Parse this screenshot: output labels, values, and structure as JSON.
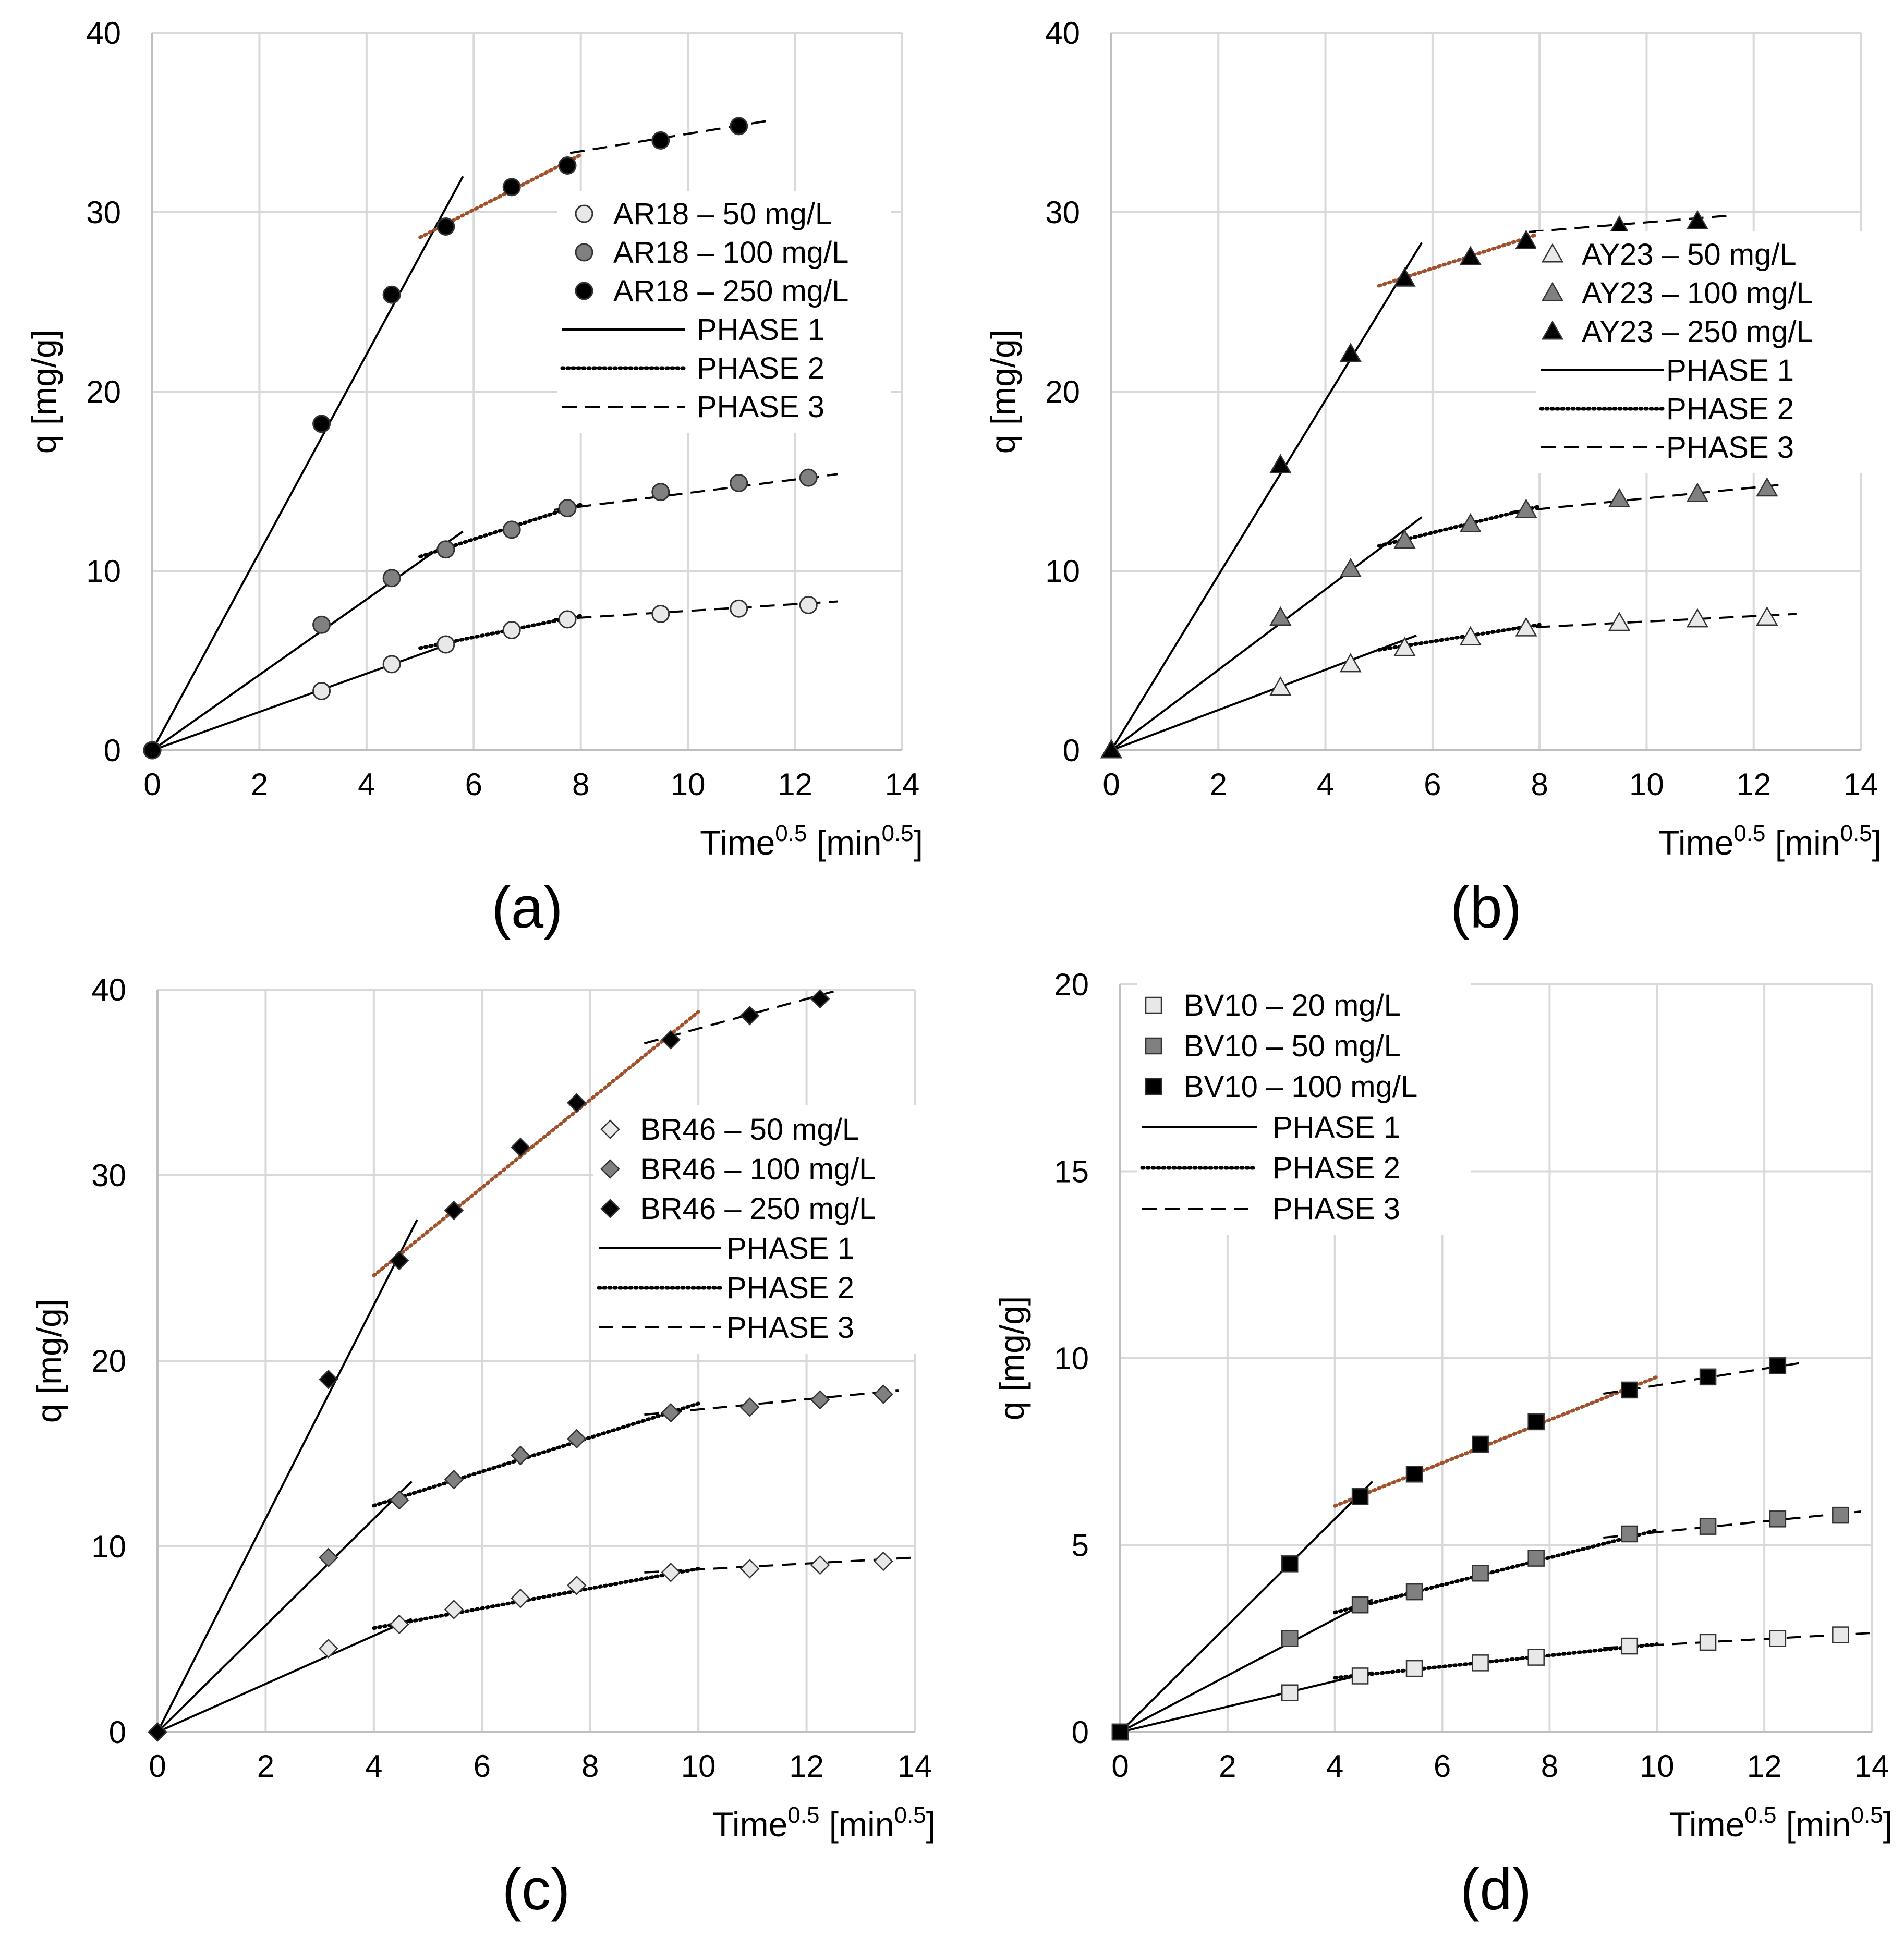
{
  "figure": {
    "panels": [
      {
        "id": "a",
        "panel_label": "(a)",
        "xlabel": "Time",
        "xlabel_sup": "0.5",
        "xunit": "[min",
        "xunit_sup": "0.5",
        "xunit_close": "]",
        "ylabel": "q [mg/g]",
        "legend_entries": [
          "AR18 – 50 mg/L",
          "AR18 – 100 mg/L",
          "AR18 – 250 mg/L",
          "PHASE 1",
          "PHASE 2",
          "PHASE 3"
        ]
      },
      {
        "id": "b",
        "panel_label": "(b)",
        "xlabel": "Time",
        "xlabel_sup": "0.5",
        "xunit": "[min",
        "xunit_sup": "0.5",
        "xunit_close": "]",
        "ylabel": "q [mg/g]",
        "legend_entries": [
          "AY23 – 50 mg/L",
          "AY23 – 100 mg/L",
          "AY23 – 250 mg/L",
          "PHASE 1",
          "PHASE 2",
          "PHASE 3"
        ]
      },
      {
        "id": "c",
        "panel_label": "(c)",
        "xlabel": "Time",
        "xlabel_sup": "0.5",
        "xunit": "[min",
        "xunit_sup": "0.5",
        "xunit_close": "]",
        "ylabel": "q [mg/g]",
        "legend_entries": [
          "BR46 – 50 mg/L",
          "BR46 – 100 mg/L",
          "BR46 – 250 mg/L",
          "PHASE 1",
          "PHASE 2",
          "PHASE 3"
        ]
      },
      {
        "id": "d",
        "panel_label": "(d)",
        "xlabel": "Time",
        "xlabel_sup": "0.5",
        "xunit": "[min",
        "xunit_sup": "0.5",
        "xunit_close": "]",
        "ylabel": "q [mg/g]",
        "legend_entries": [
          "BV10 – 20 mg/L",
          "BV10 – 50 mg/L",
          "BV10 – 100 mg/L",
          "PHASE 1",
          "PHASE 2",
          "PHASE 3"
        ]
      }
    ]
  },
  "colors": {
    "grid": "#d9d9d9",
    "axis": "#bfbfbf",
    "light_marker": "#e8e8e8",
    "mid_marker": "#808080",
    "dark_marker": "#000000",
    "phase2_highlight": "#a0522d"
  },
  "chart_data": [
    {
      "type": "scatter",
      "panel": "a",
      "xlim": [
        0,
        14
      ],
      "ylim": [
        0,
        40
      ],
      "xticks": [
        "0",
        "2",
        "4",
        "6",
        "8",
        "10",
        "12",
        "14"
      ],
      "yticks": [
        "0",
        "10",
        "20",
        "30",
        "40"
      ],
      "grid": true,
      "legend_position": "right",
      "marker": "circle",
      "series": [
        {
          "name": "AR18 – 50 mg/L",
          "shade": "light",
          "x": [
            0,
            3.16,
            4.47,
            5.48,
            6.71,
            7.75,
            9.49,
            10.95,
            12.25
          ],
          "y": [
            0,
            3.3,
            4.8,
            5.9,
            6.7,
            7.3,
            7.6,
            7.9,
            8.1
          ]
        },
        {
          "name": "AR18 – 100 mg/L",
          "shade": "mid",
          "x": [
            0,
            3.16,
            4.47,
            5.48,
            6.71,
            7.75,
            9.49,
            10.95,
            12.25
          ],
          "y": [
            0,
            7.0,
            9.6,
            11.2,
            12.3,
            13.5,
            14.4,
            14.9,
            15.2
          ]
        },
        {
          "name": "AR18 – 250 mg/L",
          "shade": "dark",
          "x": [
            0,
            3.16,
            4.47,
            5.48,
            6.71,
            7.75,
            9.49,
            10.95
          ],
          "y": [
            0,
            18.2,
            25.4,
            29.2,
            31.4,
            32.6,
            34.0,
            34.8
          ]
        }
      ],
      "fit_lines": [
        {
          "phase": "PHASE 1",
          "x": [
            0,
            5.8
          ],
          "y": [
            0,
            12.2
          ]
        },
        {
          "phase": "PHASE 1",
          "x": [
            0,
            5.8
          ],
          "y": [
            0,
            6.2
          ]
        },
        {
          "phase": "PHASE 1",
          "x": [
            0,
            5.8
          ],
          "y": [
            0,
            32.0
          ]
        },
        {
          "phase": "PHASE 2",
          "x": [
            5.0,
            8.0
          ],
          "y": [
            5.7,
            7.5
          ]
        },
        {
          "phase": "PHASE 2",
          "x": [
            5.0,
            8.0
          ],
          "y": [
            10.8,
            13.7
          ]
        },
        {
          "phase": "PHASE 2",
          "x": [
            5.0,
            8.0
          ],
          "y": [
            28.6,
            33.2
          ],
          "highlight": true
        },
        {
          "phase": "PHASE 3",
          "x": [
            7.5,
            12.8
          ],
          "y": [
            7.3,
            8.3
          ]
        },
        {
          "phase": "PHASE 3",
          "x": [
            7.5,
            12.8
          ],
          "y": [
            13.4,
            15.4
          ]
        },
        {
          "phase": "PHASE 3",
          "x": [
            7.8,
            11.5
          ],
          "y": [
            33.3,
            35.1
          ]
        }
      ]
    },
    {
      "type": "scatter",
      "panel": "b",
      "xlim": [
        0,
        14
      ],
      "ylim": [
        0,
        40
      ],
      "xticks": [
        "0",
        "2",
        "4",
        "6",
        "8",
        "10",
        "12",
        "14"
      ],
      "yticks": [
        "0",
        "10",
        "20",
        "30",
        "40"
      ],
      "grid": true,
      "legend_position": "right",
      "marker": "triangle",
      "series": [
        {
          "name": "AY23 – 50 mg/L",
          "shade": "light",
          "x": [
            0,
            3.16,
            4.47,
            5.48,
            6.71,
            7.75,
            9.49,
            10.95,
            12.25
          ],
          "y": [
            0,
            3.5,
            4.8,
            5.7,
            6.3,
            6.8,
            7.1,
            7.3,
            7.4
          ]
        },
        {
          "name": "AY23 – 100 mg/L",
          "shade": "mid",
          "x": [
            0,
            3.16,
            4.47,
            5.48,
            6.71,
            7.75,
            9.49,
            10.95,
            12.25
          ],
          "y": [
            0,
            7.4,
            10.1,
            11.7,
            12.6,
            13.4,
            14.0,
            14.3,
            14.6
          ]
        },
        {
          "name": "AY23 – 250 mg/L",
          "shade": "dark",
          "x": [
            0,
            3.16,
            4.47,
            5.48,
            6.71,
            7.75,
            9.49,
            10.95
          ],
          "y": [
            0,
            15.9,
            22.1,
            26.3,
            27.5,
            28.4,
            29.2,
            29.5
          ]
        }
      ],
      "fit_lines": [
        {
          "phase": "PHASE 1",
          "x": [
            0,
            5.7
          ],
          "y": [
            0,
            6.4
          ]
        },
        {
          "phase": "PHASE 1",
          "x": [
            0,
            5.8
          ],
          "y": [
            0,
            13.0
          ]
        },
        {
          "phase": "PHASE 1",
          "x": [
            0,
            5.8
          ],
          "y": [
            0,
            28.3
          ]
        },
        {
          "phase": "PHASE 2",
          "x": [
            5.0,
            8.0
          ],
          "y": [
            5.6,
            7.0
          ]
        },
        {
          "phase": "PHASE 2",
          "x": [
            5.0,
            8.0
          ],
          "y": [
            11.4,
            13.6
          ]
        },
        {
          "phase": "PHASE 2",
          "x": [
            5.0,
            8.0
          ],
          "y": [
            25.9,
            28.8
          ],
          "highlight": true
        },
        {
          "phase": "PHASE 3",
          "x": [
            7.5,
            12.8
          ],
          "y": [
            6.8,
            7.6
          ]
        },
        {
          "phase": "PHASE 3",
          "x": [
            7.5,
            12.5
          ],
          "y": [
            13.3,
            14.8
          ]
        },
        {
          "phase": "PHASE 3",
          "x": [
            7.8,
            11.5
          ],
          "y": [
            28.9,
            29.8
          ]
        }
      ]
    },
    {
      "type": "scatter",
      "panel": "c",
      "xlim": [
        0,
        14
      ],
      "ylim": [
        0,
        40
      ],
      "xticks": [
        "0",
        "2",
        "4",
        "6",
        "8",
        "10",
        "12",
        "14"
      ],
      "yticks": [
        "0",
        "10",
        "20",
        "30",
        "40"
      ],
      "grid": true,
      "legend_position": "right",
      "marker": "diamond",
      "series": [
        {
          "name": "BR46 – 50 mg/L",
          "shade": "light",
          "x": [
            0,
            3.16,
            4.47,
            5.48,
            6.71,
            7.75,
            9.49,
            10.95,
            12.25,
            13.42
          ],
          "y": [
            0,
            4.5,
            5.8,
            6.6,
            7.2,
            7.9,
            8.6,
            8.8,
            9.0,
            9.2
          ]
        },
        {
          "name": "BR46 – 100 mg/L",
          "shade": "mid",
          "x": [
            0,
            3.16,
            4.47,
            5.48,
            6.71,
            7.75,
            9.49,
            10.95,
            12.25,
            13.42
          ],
          "y": [
            0,
            9.4,
            12.5,
            13.6,
            14.9,
            15.8,
            17.2,
            17.5,
            17.9,
            18.2
          ]
        },
        {
          "name": "BR46 – 250 mg/L",
          "shade": "dark",
          "x": [
            0,
            3.16,
            4.47,
            5.48,
            6.71,
            7.75,
            9.49,
            10.95,
            12.25
          ],
          "y": [
            0,
            19.0,
            25.4,
            28.1,
            31.5,
            33.9,
            37.3,
            38.6,
            39.5
          ]
        }
      ],
      "fit_lines": [
        {
          "phase": "PHASE 1",
          "x": [
            0,
            4.7
          ],
          "y": [
            0,
            6.1
          ]
        },
        {
          "phase": "PHASE 1",
          "x": [
            0,
            4.7
          ],
          "y": [
            0,
            13.5
          ]
        },
        {
          "phase": "PHASE 1",
          "x": [
            0,
            4.8
          ],
          "y": [
            0,
            27.6
          ]
        },
        {
          "phase": "PHASE 2",
          "x": [
            4.0,
            10.0
          ],
          "y": [
            5.6,
            8.8
          ]
        },
        {
          "phase": "PHASE 2",
          "x": [
            4.0,
            10.0
          ],
          "y": [
            12.2,
            17.7
          ]
        },
        {
          "phase": "PHASE 2",
          "x": [
            4.0,
            10.0
          ],
          "y": [
            24.6,
            38.8
          ],
          "highlight": true
        },
        {
          "phase": "PHASE 3",
          "x": [
            9.0,
            14.0
          ],
          "y": [
            8.6,
            9.4
          ]
        },
        {
          "phase": "PHASE 3",
          "x": [
            9.0,
            13.7
          ],
          "y": [
            17.1,
            18.4
          ]
        },
        {
          "phase": "PHASE 3",
          "x": [
            9.0,
            12.5
          ],
          "y": [
            37.1,
            39.9
          ]
        }
      ]
    },
    {
      "type": "scatter",
      "panel": "d",
      "xlim": [
        0,
        14
      ],
      "ylim": [
        0,
        20
      ],
      "xticks": [
        "0",
        "2",
        "4",
        "6",
        "8",
        "10",
        "12",
        "14"
      ],
      "yticks": [
        "0",
        "5",
        "10",
        "15",
        "20"
      ],
      "grid": true,
      "legend_position": "top-left",
      "marker": "square",
      "series": [
        {
          "name": "BV10 – 20 mg/L",
          "shade": "light",
          "x": [
            0,
            3.16,
            4.47,
            5.48,
            6.71,
            7.75,
            9.49,
            10.95,
            12.25,
            13.42
          ],
          "y": [
            0,
            1.05,
            1.5,
            1.7,
            1.85,
            2.0,
            2.3,
            2.4,
            2.5,
            2.6
          ]
        },
        {
          "name": "BV10 – 50 mg/L",
          "shade": "mid",
          "x": [
            0,
            3.16,
            4.47,
            5.48,
            6.71,
            7.75,
            9.49,
            10.95,
            12.25,
            13.42
          ],
          "y": [
            0,
            2.5,
            3.4,
            3.75,
            4.25,
            4.65,
            5.3,
            5.5,
            5.7,
            5.8
          ]
        },
        {
          "name": "BV10 – 100 mg/L",
          "shade": "dark",
          "x": [
            0,
            3.16,
            4.47,
            5.48,
            6.71,
            7.75,
            9.49,
            10.95,
            12.25
          ],
          "y": [
            0,
            4.5,
            6.3,
            6.9,
            7.7,
            8.3,
            9.15,
            9.5,
            9.8
          ]
        }
      ],
      "fit_lines": [
        {
          "phase": "PHASE 1",
          "x": [
            0,
            4.7
          ],
          "y": [
            0,
            1.6
          ]
        },
        {
          "phase": "PHASE 1",
          "x": [
            0,
            4.7
          ],
          "y": [
            0,
            3.55
          ]
        },
        {
          "phase": "PHASE 1",
          "x": [
            0,
            4.7
          ],
          "y": [
            0,
            6.7
          ]
        },
        {
          "phase": "PHASE 2",
          "x": [
            4.0,
            10.0
          ],
          "y": [
            1.45,
            2.35
          ]
        },
        {
          "phase": "PHASE 2",
          "x": [
            4.0,
            10.0
          ],
          "y": [
            3.2,
            5.4
          ]
        },
        {
          "phase": "PHASE 2",
          "x": [
            4.0,
            10.0
          ],
          "y": [
            6.05,
            9.5
          ],
          "highlight": true
        },
        {
          "phase": "PHASE 3",
          "x": [
            9.0,
            14.0
          ],
          "y": [
            2.25,
            2.65
          ]
        },
        {
          "phase": "PHASE 3",
          "x": [
            9.0,
            13.8
          ],
          "y": [
            5.2,
            5.9
          ]
        },
        {
          "phase": "PHASE 3",
          "x": [
            9.0,
            12.8
          ],
          "y": [
            9.05,
            9.9
          ]
        }
      ]
    }
  ]
}
